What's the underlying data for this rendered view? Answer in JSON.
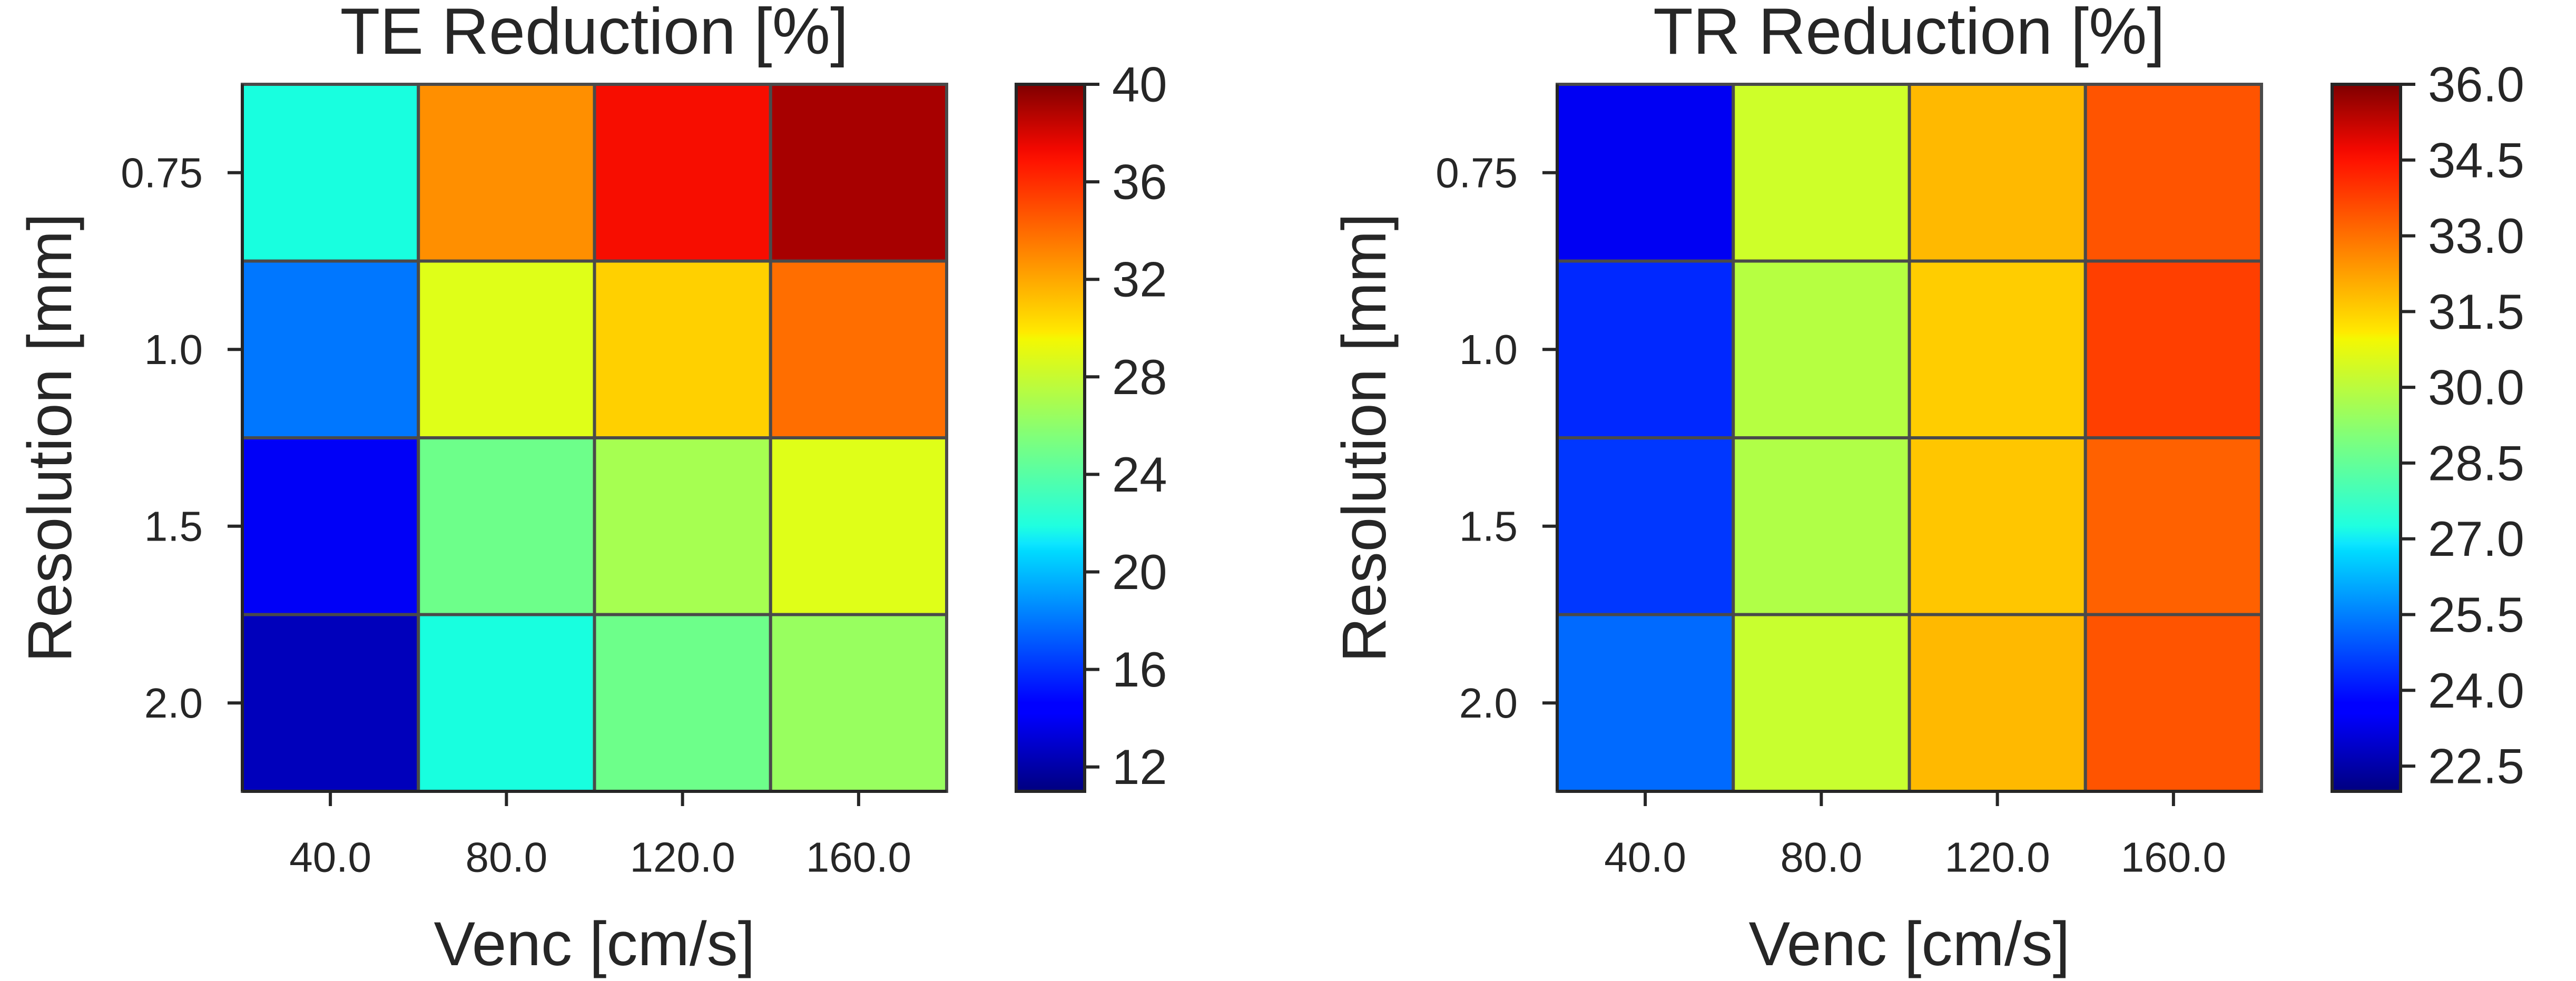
{
  "chart_data": [
    {
      "type": "heatmap",
      "title": "TE Reduction [%]",
      "xlabel": "Venc [cm/s]",
      "ylabel": "Resolution [mm]",
      "x_categories": [
        "40.0",
        "80.0",
        "120.0",
        "160.0"
      ],
      "y_categories": [
        "0.75",
        "1.0",
        "1.5",
        "2.0"
      ],
      "values": [
        [
          22,
          33,
          37,
          39
        ],
        [
          18,
          29,
          31,
          34
        ],
        [
          14,
          25,
          27,
          29
        ],
        [
          12.5,
          22,
          25,
          26.5
        ]
      ],
      "color_range": [
        11,
        40
      ],
      "colormap": "jet",
      "colorbar_ticks": [
        "12",
        "16",
        "20",
        "24",
        "28",
        "32",
        "36",
        "40"
      ],
      "grid": true
    },
    {
      "type": "heatmap",
      "title": "TR Reduction [%]",
      "xlabel": "Venc [cm/s]",
      "ylabel": "Resolution [mm]",
      "x_categories": [
        "40.0",
        "80.0",
        "120.0",
        "160.0"
      ],
      "y_categories": [
        "0.75",
        "1.0",
        "1.5",
        "2.0"
      ],
      "values": [
        [
          23.4,
          30.4,
          32.0,
          33.5
        ],
        [
          24.3,
          30.0,
          31.7,
          33.8
        ],
        [
          24.5,
          29.9,
          31.8,
          33.3
        ],
        [
          25.2,
          30.3,
          32.0,
          33.5
        ]
      ],
      "color_range": [
        22.0,
        36.0
      ],
      "colormap": "jet",
      "colorbar_ticks": [
        "22.5",
        "24.0",
        "25.5",
        "27.0",
        "28.5",
        "30.0",
        "31.5",
        "33.0",
        "34.5",
        "36.0"
      ],
      "grid": true
    }
  ]
}
